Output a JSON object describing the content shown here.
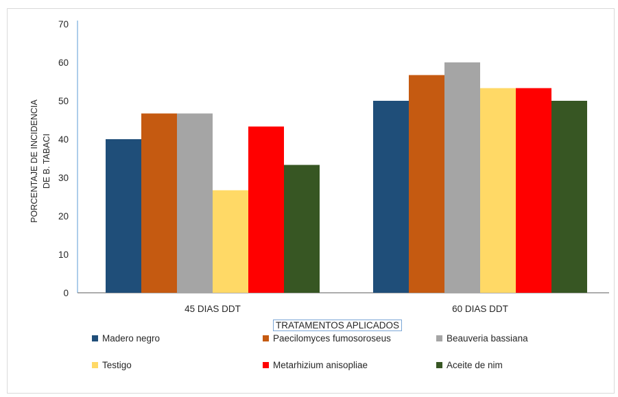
{
  "chart_data": {
    "type": "bar",
    "categories": [
      "45 DIAS DDT",
      "60 DIAS DDT"
    ],
    "series": [
      {
        "name": "Madero negro",
        "values": [
          40,
          50
        ],
        "color": "#1f4e79"
      },
      {
        "name": "Paecilomyces fumosoroseus",
        "values": [
          46.7,
          56.7
        ],
        "color": "#c55a11"
      },
      {
        "name": "Beauveria bassiana",
        "values": [
          46.7,
          60
        ],
        "color": "#a5a5a5"
      },
      {
        "name": "Testigo",
        "values": [
          26.7,
          53.3
        ],
        "color": "#ffd966"
      },
      {
        "name": "Metarhizium anisopliae",
        "values": [
          43.3,
          53.3
        ],
        "color": "#ff0000"
      },
      {
        "name": "Aceite de nim",
        "values": [
          33.3,
          50
        ],
        "color": "#375623"
      }
    ],
    "xlabel": "TRATAMENTOS  APLICADOS",
    "ylabel_lines": [
      "PORCENTAJE DE INCIDENCIA",
      "DE B. TABACI"
    ],
    "ylim": [
      0,
      70
    ],
    "yticks": [
      0,
      10,
      20,
      30,
      40,
      50,
      60,
      70
    ],
    "grid": false,
    "legend_position": "bottom"
  }
}
